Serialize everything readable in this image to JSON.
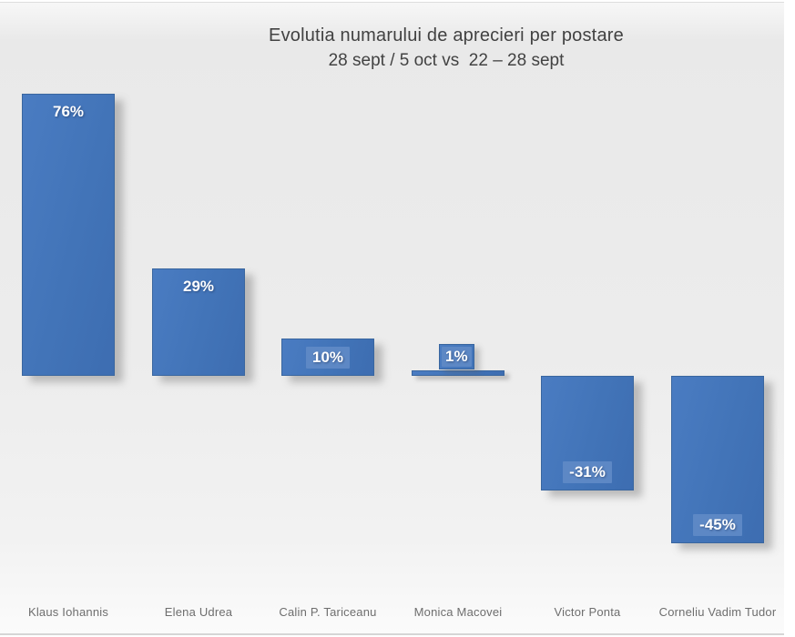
{
  "chart_data": {
    "type": "bar",
    "title": "Evolutia numarului de aprecieri per postare",
    "subtitle": "28 sept / 5 oct vs  22 – 28 sept",
    "categories": [
      "Klaus Iohannis",
      "Elena Udrea",
      "Calin P. Tariceanu",
      "Monica Macovei",
      "Victor Ponta",
      "Corneliu Vadim Tudor"
    ],
    "values": [
      76,
      29,
      10,
      1,
      -31,
      -45
    ],
    "data_labels": [
      "76%",
      "29%",
      "10%",
      "1%",
      "-31%",
      "-45%"
    ],
    "baseline_value": 0,
    "ylim": [
      -55,
      80
    ],
    "grid": false,
    "legend": false,
    "colors": {
      "bar_fill": "#4274b8",
      "bar_border": "#39669f",
      "label_box_fill": "#5d88c5",
      "label_text": "#ffffff",
      "title_text": "#424242",
      "category_text": "#6e6e6e",
      "background": "#ececec"
    }
  }
}
